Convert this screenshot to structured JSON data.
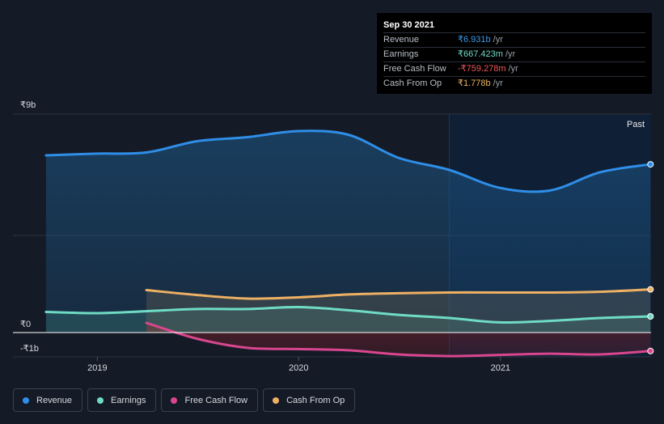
{
  "tooltip": {
    "date": "Sep 30 2021",
    "rows": [
      {
        "label": "Revenue",
        "value": "₹6.931b",
        "unit": "/yr",
        "color": "#3b9ae8"
      },
      {
        "label": "Earnings",
        "value": "₹667.423m",
        "unit": "/yr",
        "color": "#72dbc6"
      },
      {
        "label": "Free Cash Flow",
        "value": "-₹759.278m",
        "unit": "/yr",
        "color": "#f25656"
      },
      {
        "label": "Cash From Op",
        "value": "₹1.778b",
        "unit": "/yr",
        "color": "#f0b45a"
      }
    ]
  },
  "past_label": "Past",
  "legend": [
    {
      "label": "Revenue",
      "color": "#2f8ee8"
    },
    {
      "label": "Earnings",
      "color": "#6fdbc5"
    },
    {
      "label": "Free Cash Flow",
      "color": "#d9468f"
    },
    {
      "label": "Cash From Op",
      "color": "#eeb064"
    }
  ],
  "chart_data": {
    "type": "line",
    "ylim": [
      -1,
      9
    ],
    "xlim": [
      "2018-08-01",
      "2021-10-01"
    ],
    "y_tick_labels": [
      {
        "value": 9,
        "label": "₹9b"
      },
      {
        "value": 0,
        "label": "₹0"
      },
      {
        "value": -1,
        "label": "-₹1b"
      }
    ],
    "x_tick_labels": [
      {
        "value": "2019-01-01",
        "label": "2019"
      },
      {
        "value": "2020-01-01",
        "label": "2020"
      },
      {
        "value": "2021-01-01",
        "label": "2021"
      }
    ],
    "highlight_start": "2020-09-30",
    "series": [
      {
        "name": "Revenue",
        "color": "#2f8ee8",
        "points": [
          [
            "2018-09-30",
            7.3
          ],
          [
            "2018-12-31",
            7.37
          ],
          [
            "2019-03-31",
            7.42
          ],
          [
            "2019-06-30",
            7.88
          ],
          [
            "2019-09-30",
            8.05
          ],
          [
            "2019-12-31",
            8.3
          ],
          [
            "2020-03-31",
            8.15
          ],
          [
            "2020-06-30",
            7.2
          ],
          [
            "2020-09-30",
            6.7
          ],
          [
            "2020-12-31",
            5.96
          ],
          [
            "2021-03-31",
            5.85
          ],
          [
            "2021-06-30",
            6.6
          ],
          [
            "2021-09-30",
            6.931
          ]
        ]
      },
      {
        "name": "Earnings",
        "color": "#6fdbc5",
        "points": [
          [
            "2018-09-30",
            0.85
          ],
          [
            "2018-12-31",
            0.8
          ],
          [
            "2019-03-31",
            0.88
          ],
          [
            "2019-06-30",
            0.97
          ],
          [
            "2019-09-30",
            0.97
          ],
          [
            "2019-12-31",
            1.05
          ],
          [
            "2020-03-31",
            0.92
          ],
          [
            "2020-06-30",
            0.73
          ],
          [
            "2020-09-30",
            0.6
          ],
          [
            "2020-12-31",
            0.42
          ],
          [
            "2021-03-31",
            0.48
          ],
          [
            "2021-06-30",
            0.6
          ],
          [
            "2021-09-30",
            0.667
          ]
        ]
      },
      {
        "name": "Free Cash Flow",
        "color": "#d9468f",
        "points": [
          [
            "2019-03-31",
            0.4
          ],
          [
            "2019-06-30",
            -0.25
          ],
          [
            "2019-09-30",
            -0.63
          ],
          [
            "2019-12-31",
            -0.68
          ],
          [
            "2020-03-31",
            -0.73
          ],
          [
            "2020-06-30",
            -0.9
          ],
          [
            "2020-09-30",
            -0.97
          ],
          [
            "2020-12-31",
            -0.92
          ],
          [
            "2021-03-31",
            -0.87
          ],
          [
            "2021-06-30",
            -0.9
          ],
          [
            "2021-09-30",
            -0.759
          ]
        ]
      },
      {
        "name": "Cash From Op",
        "color": "#eeb064",
        "points": [
          [
            "2019-03-31",
            1.75
          ],
          [
            "2019-06-30",
            1.55
          ],
          [
            "2019-09-30",
            1.4
          ],
          [
            "2019-12-31",
            1.45
          ],
          [
            "2020-03-31",
            1.57
          ],
          [
            "2020-06-30",
            1.62
          ],
          [
            "2020-09-30",
            1.65
          ],
          [
            "2020-12-31",
            1.65
          ],
          [
            "2021-03-31",
            1.65
          ],
          [
            "2021-06-30",
            1.68
          ],
          [
            "2021-09-30",
            1.778
          ]
        ]
      }
    ]
  }
}
